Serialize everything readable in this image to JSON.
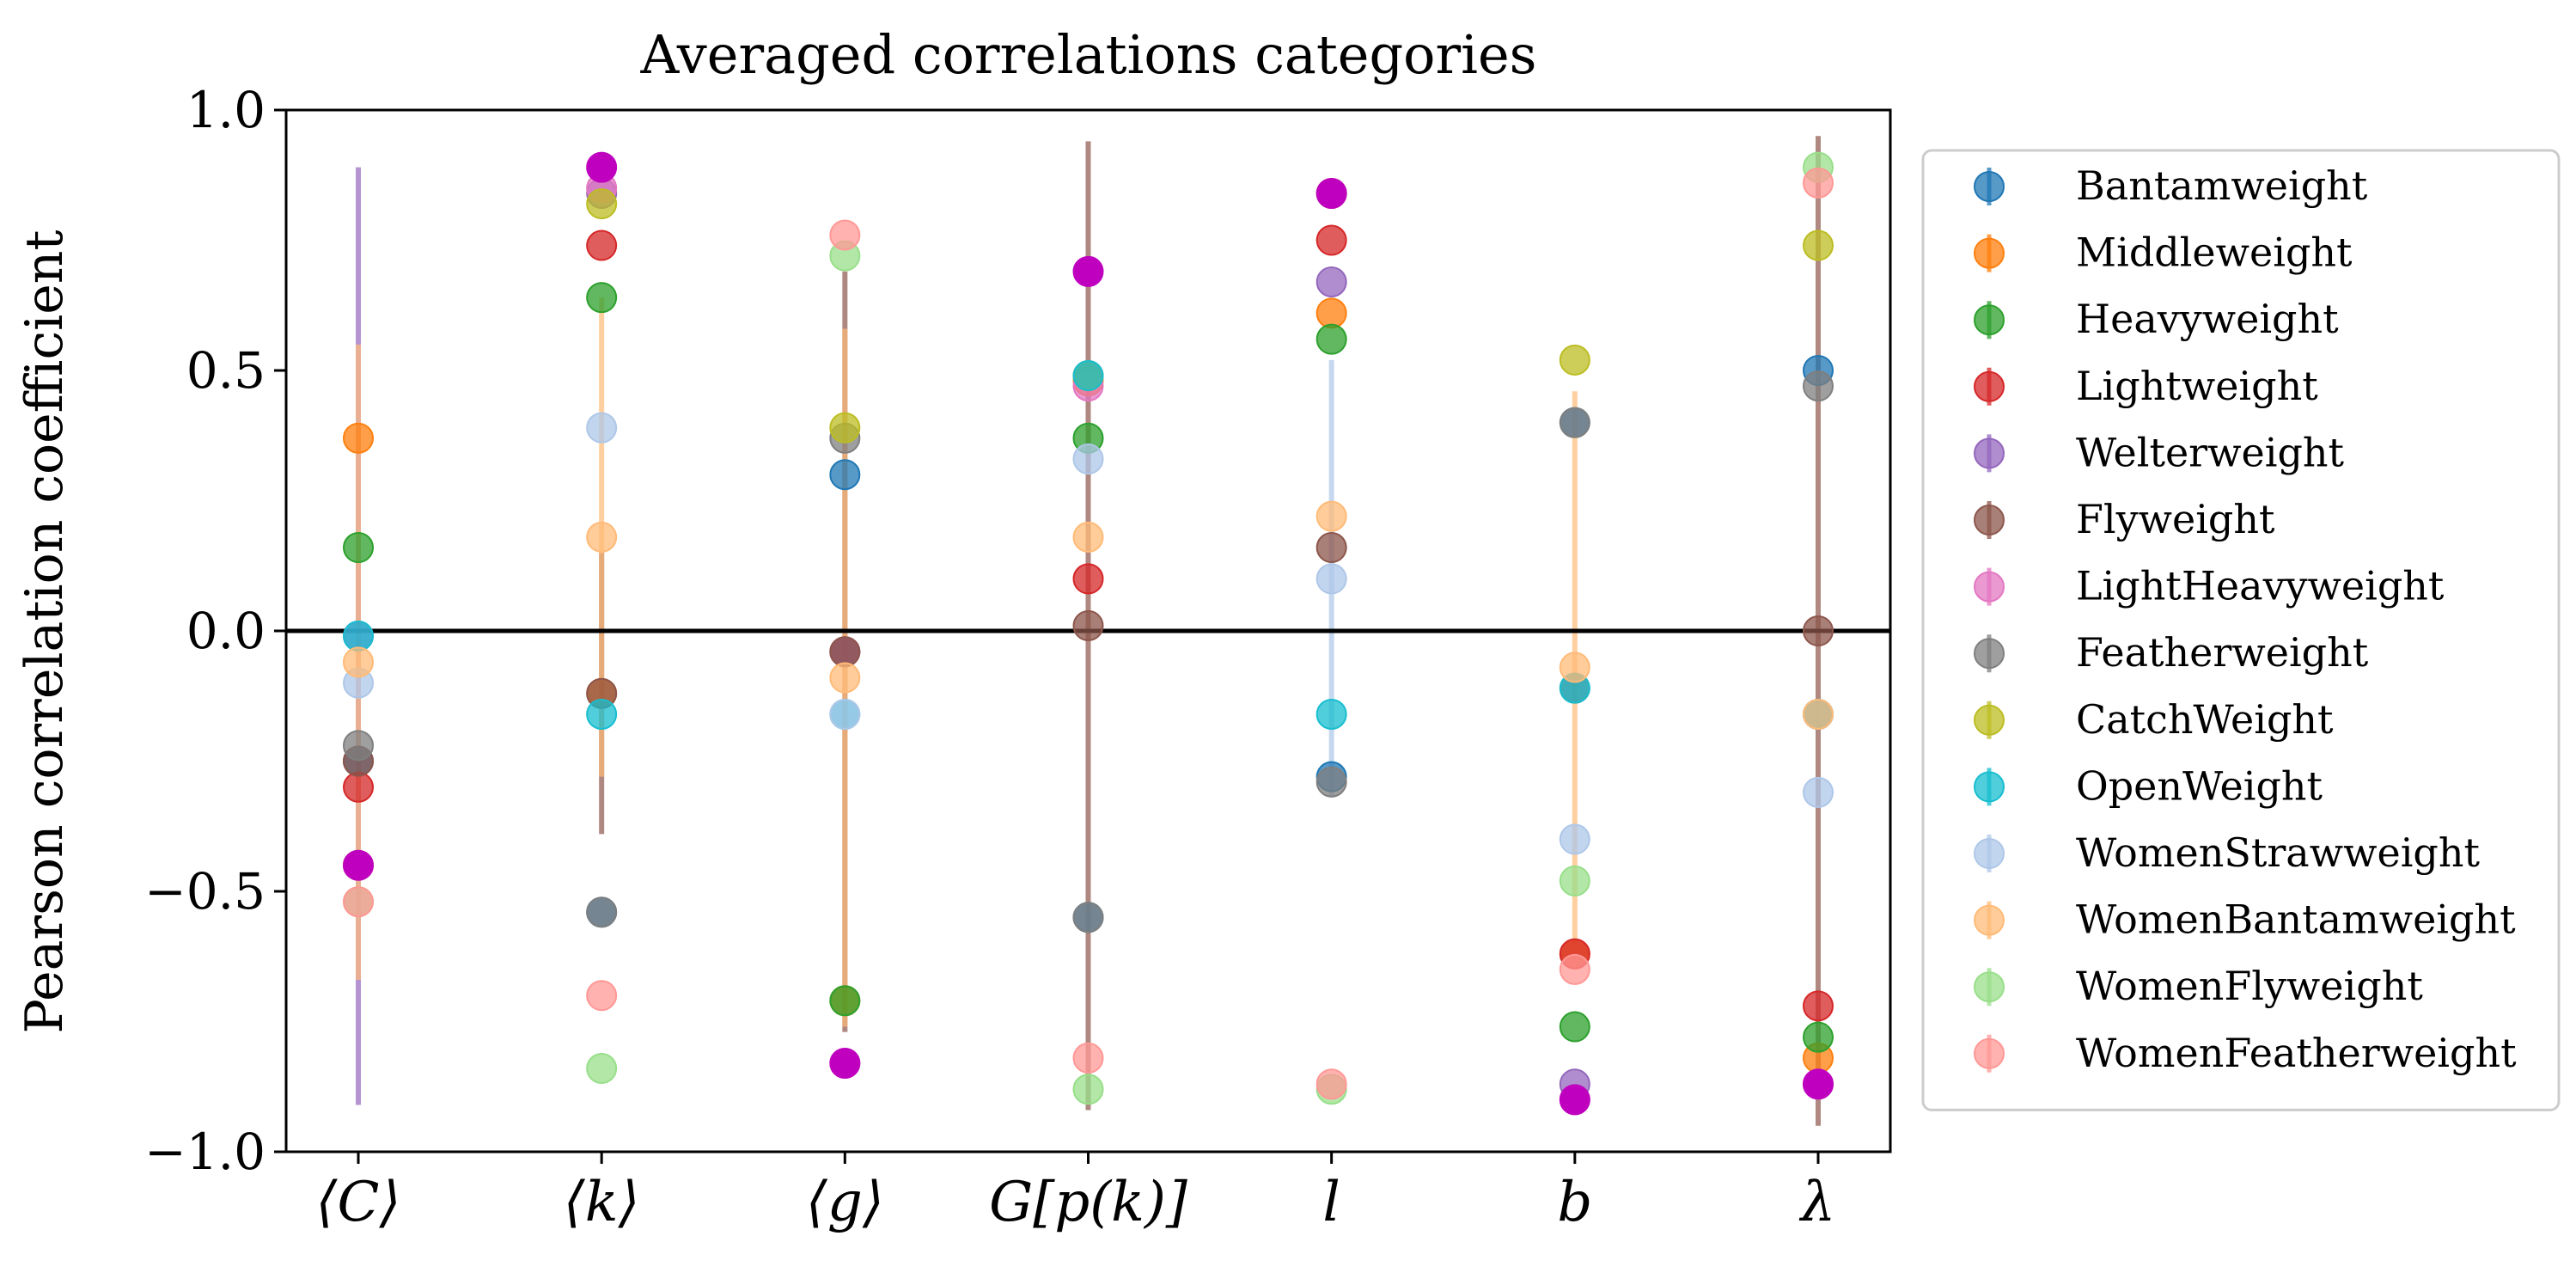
{
  "chart_data": {
    "type": "scatter",
    "title": "Averaged correlations categories",
    "ylabel": "Pearson correlation coefficient",
    "xlabel": "",
    "categories": [
      "⟨C⟩",
      "⟨k⟩",
      "⟨g⟩",
      "G[p(k)]",
      "l",
      "b",
      "λ"
    ],
    "ylim": [
      -1.0,
      1.0
    ],
    "yticks": [
      -1.0,
      -0.5,
      0.0,
      0.5,
      1.0
    ],
    "ytick_labels": [
      "−1.0",
      "−0.5",
      "0.0",
      "0.5",
      "1.0"
    ],
    "zero_line": true,
    "grid": false,
    "legend_position": "right, outside plot",
    "series": [
      {
        "name": "Bantamweight",
        "color": "#1f77b4",
        "values": [
          -0.25,
          -0.54,
          0.3,
          -0.55,
          -0.28,
          0.4,
          0.5
        ]
      },
      {
        "name": "Middleweight",
        "color": "#ff7f0e",
        "values": [
          0.37,
          -0.12,
          -0.71,
          0.48,
          0.61,
          -0.62,
          -0.82
        ]
      },
      {
        "name": "Heavyweight",
        "color": "#2ca02c",
        "values": [
          0.16,
          0.64,
          -0.71,
          0.37,
          0.56,
          -0.76,
          -0.78
        ]
      },
      {
        "name": "Lightweight",
        "color": "#d62728",
        "values": [
          -0.3,
          0.74,
          -0.04,
          0.1,
          0.75,
          -0.62,
          -0.72
        ]
      },
      {
        "name": "Welterweight",
        "color": "#9467bd",
        "values": [
          -0.01,
          0.84,
          -0.04,
          0.49,
          0.67,
          -0.87,
          -0.16
        ],
        "error": [
          0.9,
          null,
          null,
          null,
          null,
          null,
          null
        ]
      },
      {
        "name": "Flyweight",
        "color": "#8c564b",
        "values": [
          -0.25,
          -0.12,
          -0.04,
          0.01,
          0.16,
          -0.11,
          0.0
        ],
        "error": [
          null,
          0.27,
          0.73,
          0.93,
          null,
          null,
          0.95
        ]
      },
      {
        "name": "LightHeavyweight",
        "color": "#e377c2",
        "values": [
          -0.45,
          0.85,
          -0.83,
          0.47,
          0.84,
          -0.9,
          -0.87
        ]
      },
      {
        "name": "Featherweight",
        "color": "#7f7f7f",
        "values": [
          -0.22,
          -0.54,
          0.37,
          -0.55,
          -0.29,
          0.4,
          0.47
        ]
      },
      {
        "name": "CatchWeight",
        "color": "#bcbd22",
        "values": [
          -0.45,
          0.82,
          0.39,
          0.49,
          0.84,
          0.52,
          0.74
        ]
      },
      {
        "name": "OpenWeight",
        "color": "#17becf",
        "values": [
          -0.01,
          -0.16,
          -0.16,
          0.49,
          -0.16,
          -0.11,
          -0.16
        ]
      },
      {
        "name": "WomenStrawweight",
        "color": "#aec7e8",
        "values": [
          -0.1,
          0.39,
          -0.16,
          0.33,
          0.1,
          -0.4,
          -0.31
        ],
        "error": [
          null,
          null,
          null,
          null,
          0.42,
          null,
          null
        ]
      },
      {
        "name": "WomenBantamweight",
        "color": "#ffbb78",
        "values": [
          -0.06,
          0.18,
          -0.09,
          0.18,
          0.22,
          -0.07,
          -0.16
        ],
        "error": [
          0.61,
          0.46,
          0.67,
          null,
          null,
          0.53,
          null
        ]
      },
      {
        "name": "WomenFlyweight",
        "color": "#98df8a",
        "values": [
          -0.52,
          -0.84,
          0.72,
          -0.88,
          -0.88,
          -0.48,
          0.89
        ]
      },
      {
        "name": "WomenFeatherweight",
        "color": "#ff9896",
        "values": [
          -0.52,
          -0.7,
          0.76,
          -0.82,
          -0.87,
          -0.65,
          0.86
        ]
      }
    ],
    "extra_points": {
      "color": "#bf00bf",
      "values": [
        -0.45,
        0.89,
        -0.83,
        0.69,
        0.84,
        -0.9,
        -0.87
      ]
    }
  }
}
